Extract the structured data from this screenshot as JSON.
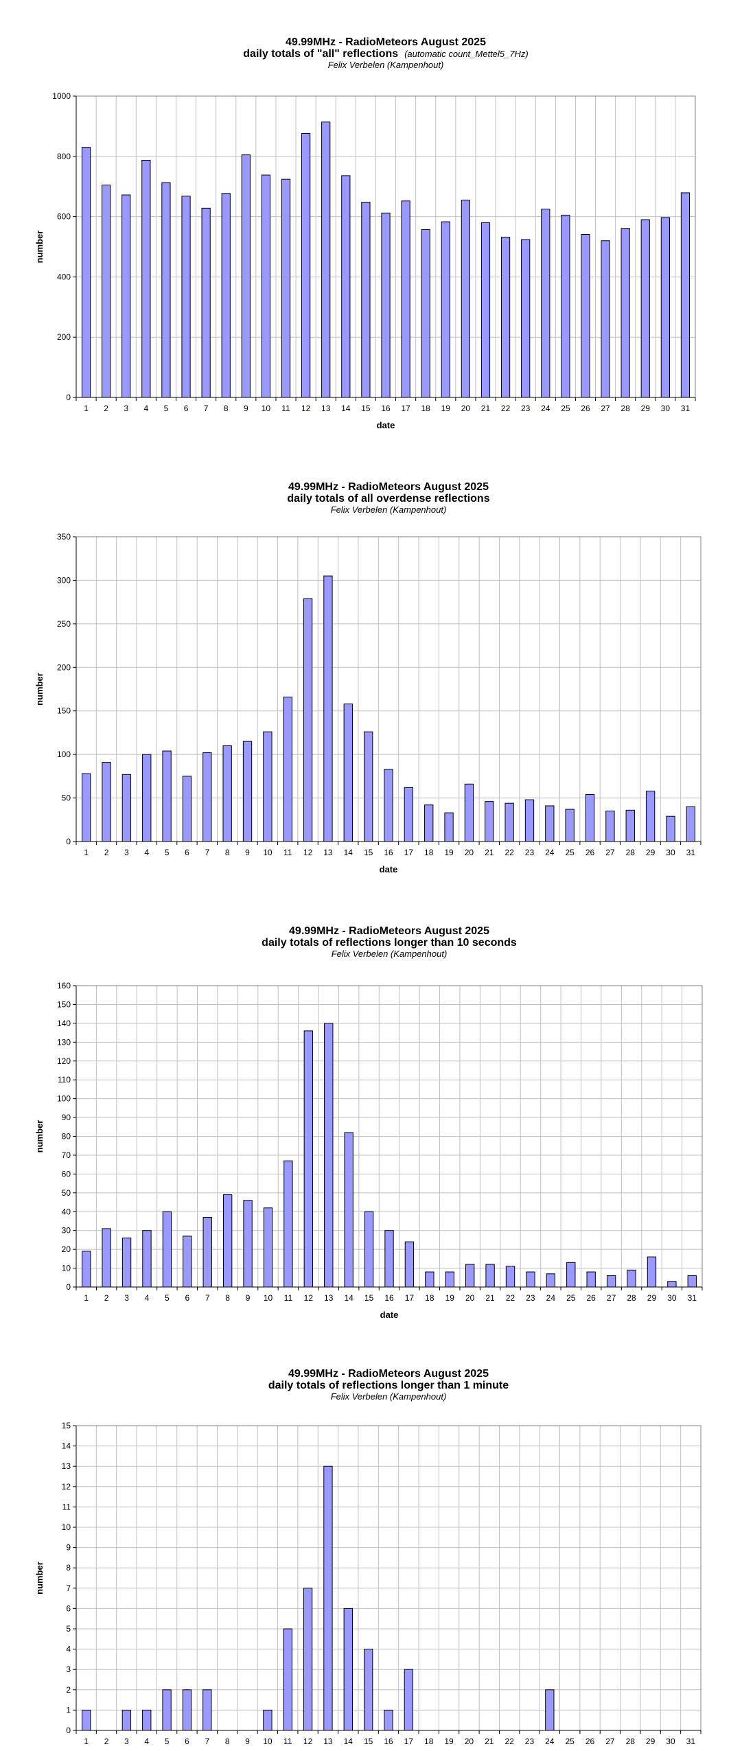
{
  "chart_data": [
    {
      "type": "bar",
      "title": "49.99MHz - RadioMeteors August 2025",
      "subtitle": "daily totals of \"all\" reflections",
      "subtitle_note": "(automatic count_Mettel5_7Hz)",
      "author": "Felix Verbelen (Kampenhout)",
      "xlabel": "date",
      "ylabel": "number",
      "ylim": [
        0,
        1000
      ],
      "ytick_step": 200,
      "grid": true,
      "bar_color": "#9999ff",
      "categories": [
        "1",
        "2",
        "3",
        "4",
        "5",
        "6",
        "7",
        "8",
        "9",
        "10",
        "11",
        "12",
        "13",
        "14",
        "15",
        "16",
        "17",
        "18",
        "19",
        "20",
        "21",
        "22",
        "23",
        "24",
        "25",
        "26",
        "27",
        "28",
        "29",
        "30",
        "31"
      ],
      "values": [
        830,
        705,
        672,
        787,
        713,
        668,
        628,
        677,
        805,
        738,
        724,
        876,
        914,
        736,
        648,
        612,
        652,
        557,
        583,
        655,
        580,
        532,
        524,
        625,
        605,
        541,
        520,
        561,
        590,
        597,
        679
      ]
    },
    {
      "type": "bar",
      "title": "49.99MHz - RadioMeteors August 2025",
      "subtitle": "daily totals of all overdense reflections",
      "subtitle_note": "",
      "author": "Felix Verbelen (Kampenhout)",
      "xlabel": "date",
      "ylabel": "number",
      "ylim": [
        0,
        350
      ],
      "ytick_step": 50,
      "grid": true,
      "bar_color": "#9999ff",
      "categories": [
        "1",
        "2",
        "3",
        "4",
        "5",
        "6",
        "7",
        "8",
        "9",
        "10",
        "11",
        "12",
        "13",
        "14",
        "15",
        "16",
        "17",
        "18",
        "19",
        "20",
        "21",
        "22",
        "23",
        "24",
        "25",
        "26",
        "27",
        "28",
        "29",
        "30",
        "31"
      ],
      "values": [
        78,
        91,
        77,
        100,
        104,
        75,
        102,
        110,
        115,
        126,
        166,
        279,
        305,
        158,
        126,
        83,
        62,
        42,
        33,
        66,
        46,
        44,
        48,
        41,
        37,
        54,
        35,
        36,
        58,
        29,
        40
      ]
    },
    {
      "type": "bar",
      "title": "49.99MHz - RadioMeteors August 2025",
      "subtitle": "daily totals of reflections longer than 10 seconds",
      "subtitle_note": "",
      "author": "Felix Verbelen (Kampenhout)",
      "xlabel": "date",
      "ylabel": "number",
      "ylim": [
        0,
        160
      ],
      "ytick_step": 10,
      "grid": true,
      "bar_color": "#9999ff",
      "categories": [
        "1",
        "2",
        "3",
        "4",
        "5",
        "6",
        "7",
        "8",
        "9",
        "10",
        "11",
        "12",
        "13",
        "14",
        "15",
        "16",
        "17",
        "18",
        "19",
        "20",
        "21",
        "22",
        "23",
        "24",
        "25",
        "26",
        "27",
        "28",
        "29",
        "30",
        "31"
      ],
      "values": [
        19,
        31,
        26,
        30,
        40,
        27,
        37,
        49,
        46,
        42,
        67,
        136,
        140,
        82,
        40,
        30,
        24,
        8,
        8,
        12,
        12,
        11,
        8,
        7,
        13,
        8,
        6,
        9,
        16,
        3,
        6
      ]
    },
    {
      "type": "bar",
      "title": "49.99MHz - RadioMeteors August 2025",
      "subtitle": "daily totals of reflections longer than 1 minute",
      "subtitle_note": "",
      "author": "Felix Verbelen (Kampenhout)",
      "xlabel": "date",
      "ylabel": "number",
      "ylim": [
        0,
        15
      ],
      "ytick_step": 1,
      "grid": true,
      "bar_color": "#9999ff",
      "categories": [
        "1",
        "2",
        "3",
        "4",
        "5",
        "6",
        "7",
        "8",
        "9",
        "10",
        "11",
        "12",
        "13",
        "14",
        "15",
        "16",
        "17",
        "18",
        "19",
        "20",
        "21",
        "22",
        "23",
        "24",
        "25",
        "26",
        "27",
        "28",
        "29",
        "30",
        "31"
      ],
      "values": [
        1,
        0,
        1,
        1,
        2,
        2,
        2,
        0,
        0,
        1,
        5,
        7,
        13,
        6,
        4,
        1,
        3,
        0,
        0,
        0,
        0,
        0,
        0,
        2,
        0,
        0,
        0,
        0,
        0,
        0,
        0
      ]
    }
  ]
}
